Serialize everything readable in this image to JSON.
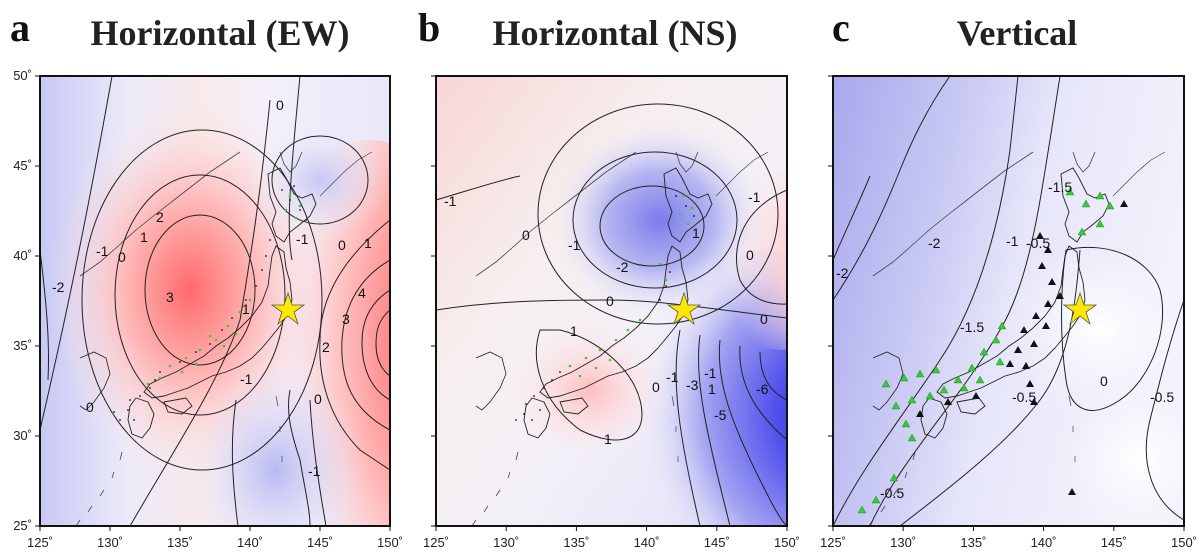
{
  "panels": [
    {
      "letter": "a",
      "title": "Horizontal (EW)"
    },
    {
      "letter": "b",
      "title": "Horizontal (NS)"
    },
    {
      "letter": "c",
      "title": "Vertical"
    }
  ],
  "axes": {
    "lon_ticks": [
      "125˚",
      "130˚",
      "135˚",
      "140˚",
      "145˚",
      "150˚"
    ],
    "lat_ticks": [
      "50˚",
      "45˚",
      "40˚",
      "35˚",
      "30˚",
      "25˚"
    ],
    "lon_values": [
      125,
      130,
      135,
      140,
      145,
      150
    ],
    "lat_values": [
      50,
      45,
      40,
      35,
      30,
      25
    ]
  },
  "epicenter": {
    "lon": 142.9,
    "lat": 38.1,
    "marker": "star",
    "color": "#ffe800"
  },
  "colors": {
    "positive": "#ff4040",
    "negative": "#4a4cf0",
    "gnss_station": "#33cc33",
    "tide_station": "#111111"
  },
  "contour_labels": {
    "a": [
      "0",
      "1",
      "2",
      "3",
      "-1",
      "-2",
      "0",
      "1",
      "0",
      "-1",
      "1",
      "2",
      "3",
      "4",
      "0",
      "-1",
      "0",
      "-1"
    ],
    "b": [
      "-1",
      "0",
      "-1",
      "-2",
      "1",
      "0",
      "0",
      "1",
      "1",
      "0",
      "-1",
      "-1",
      "-3",
      "-5",
      "-6",
      "0",
      "1",
      "-1"
    ],
    "c": [
      "-1.5",
      "-2",
      "-2",
      "-1",
      "-0.5",
      "-1.5",
      "-0.5",
      "0",
      "-0.5",
      "-0.5"
    ]
  }
}
